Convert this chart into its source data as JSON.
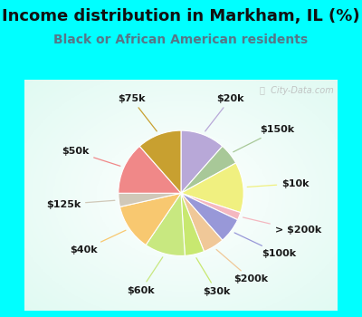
{
  "title": "Income distribution in Markham, IL (%)",
  "subtitle": "Black or African American residents",
  "bg_outer": "#00FFFF",
  "slices": [
    {
      "label": "$20k",
      "value": 11.5,
      "color": "#b8a8d8"
    },
    {
      "label": "$150k",
      "value": 5.5,
      "color": "#a8c898"
    },
    {
      "label": "$10k",
      "value": 13.0,
      "color": "#f0f080"
    },
    {
      "label": "> $200k",
      "value": 2.0,
      "color": "#f4b8c0"
    },
    {
      "label": "$100k",
      "value": 6.5,
      "color": "#9898d8"
    },
    {
      "label": "$200k",
      "value": 5.5,
      "color": "#f0c898"
    },
    {
      "label": "$30k",
      "value": 5.0,
      "color": "#c8e870"
    },
    {
      "label": "$60k",
      "value": 10.5,
      "color": "#c8e880"
    },
    {
      "label": "$40k",
      "value": 12.0,
      "color": "#f8c870"
    },
    {
      "label": "$125k",
      "value": 3.5,
      "color": "#d0c8b8"
    },
    {
      "label": "$50k",
      "value": 13.5,
      "color": "#f08888"
    },
    {
      "label": "$75k",
      "value": 11.5,
      "color": "#c8a030"
    }
  ],
  "watermark": "City-Data.com",
  "label_fontsize": 8.0,
  "title_fontsize": 13,
  "subtitle_fontsize": 10,
  "title_color": "#111111",
  "subtitle_color": "#557788"
}
